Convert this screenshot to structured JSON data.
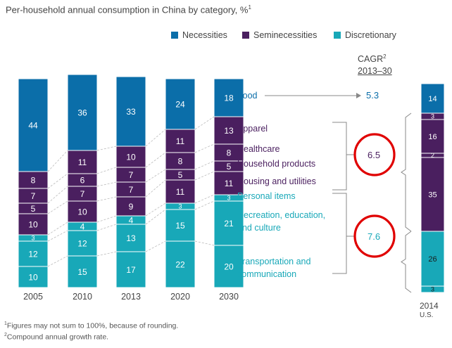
{
  "title": "Per-household annual consumption in China by category, %",
  "title_sup": "1",
  "legend": [
    {
      "label": "Necessities",
      "color": "#0b6ea9"
    },
    {
      "label": "Seminecessities",
      "color": "#4a1f5f"
    },
    {
      "label": "Discretionary",
      "color": "#18a8b8"
    }
  ],
  "cagr_header": {
    "line1": "CAGR",
    "sup": "2",
    "line2": "2013–30"
  },
  "footnotes": [
    {
      "sup": "1",
      "text": "Figures may not sum to 100%, because of rounding."
    },
    {
      "sup": "2",
      "text": "Compound annual growth rate."
    }
  ],
  "chart_data": {
    "type": "stacked-bar",
    "years": [
      "2005",
      "2010",
      "2013",
      "2020",
      "2030"
    ],
    "categories": [
      {
        "name": "Transportation and communication",
        "group": "Discretionary",
        "values": [
          10,
          15,
          17,
          22,
          20
        ]
      },
      {
        "name": "Recreation, education, and culture",
        "group": "Discretionary",
        "values": [
          12,
          12,
          13,
          15,
          21
        ]
      },
      {
        "name": "Personal items",
        "group": "Discretionary",
        "values": [
          3,
          4,
          4,
          3,
          3
        ]
      },
      {
        "name": "Housing and utilities",
        "group": "Seminecessities",
        "values": [
          10,
          10,
          9,
          11,
          11
        ]
      },
      {
        "name": "Household products",
        "group": "Seminecessities",
        "values": [
          5,
          7,
          7,
          5,
          5
        ]
      },
      {
        "name": "Healthcare",
        "group": "Seminecessities",
        "values": [
          7,
          6,
          7,
          8,
          8
        ]
      },
      {
        "name": "Apparel",
        "group": "Seminecessities",
        "values": [
          8,
          11,
          10,
          11,
          13
        ]
      },
      {
        "name": "Food",
        "group": "Necessities",
        "values": [
          44,
          36,
          33,
          24,
          18
        ]
      }
    ],
    "category_labels": [
      {
        "text": "Food",
        "group": "Necessities"
      },
      {
        "text": "Apparel",
        "group": "Seminecessities"
      },
      {
        "text": "Healthcare",
        "group": "Seminecessities"
      },
      {
        "text": "Household products",
        "group": "Seminecessities"
      },
      {
        "text": "Housing and utilities",
        "group": "Seminecessities"
      },
      {
        "text": "Personal items",
        "group": "Discretionary"
      },
      {
        "text": "Recreation, education,",
        "group": "Discretionary"
      },
      {
        "text": "and culture",
        "group": "Discretionary"
      },
      {
        "text": "Transportation and",
        "group": "Discretionary"
      },
      {
        "text": "communication",
        "group": "Discretionary"
      }
    ],
    "cagr": [
      {
        "group": "Necessities",
        "value": "5.3",
        "circled": false
      },
      {
        "group": "Seminecessities",
        "value": "6.5",
        "circled": true
      },
      {
        "group": "Discretionary",
        "value": "7.6",
        "circled": true
      }
    ],
    "us_2014": {
      "label": "2014",
      "sublabel": "U.S.",
      "segments": [
        {
          "group": "Discretionary",
          "value": 3
        },
        {
          "group": "Discretionary",
          "value": 26
        },
        {
          "group": "Seminecessities",
          "value": 35
        },
        {
          "group": "Seminecessities",
          "value": 2
        },
        {
          "group": "Seminecessities",
          "value": 16
        },
        {
          "group": "Seminecessities",
          "value": 3
        },
        {
          "group": "Necessities",
          "value": 14
        }
      ]
    },
    "colors": {
      "Necessities": "#0b6ea9",
      "Seminecessities": "#4a1f5f",
      "Discretionary": "#18a8b8",
      "highlight": "#e00000",
      "guide": "#888888"
    }
  }
}
